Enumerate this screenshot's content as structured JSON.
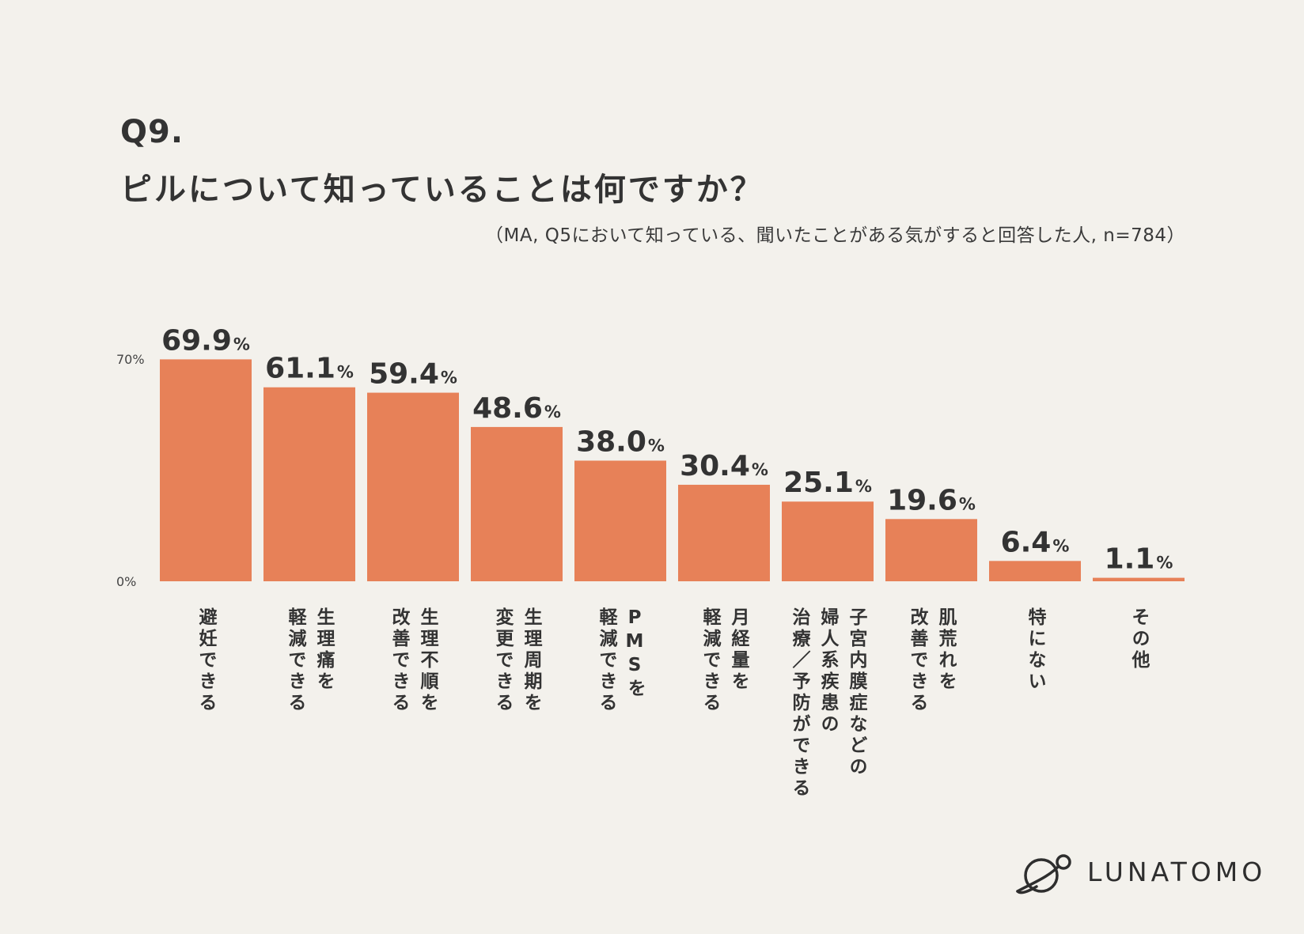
{
  "header": {
    "question_number": "Q9.",
    "question_text": "ピルについて知っていることは何ですか？",
    "note": "（MA, Q5において知っている、聞いたことがある気がすると回答した人, n=784）"
  },
  "chart_data": {
    "type": "bar",
    "title": "ピルについて知っていることは何ですか？",
    "unit": "%",
    "ylim": [
      0,
      70
    ],
    "yticks": [
      {
        "value": 0,
        "label": "0%"
      },
      {
        "value": 70,
        "label": "70%"
      }
    ],
    "grid": false,
    "categories": [
      [
        "避妊できる"
      ],
      [
        "生理痛を",
        "軽減できる"
      ],
      [
        "生理不順を",
        "改善できる"
      ],
      [
        "生理周期を",
        "変更できる"
      ],
      [
        "PMSを",
        "軽減できる"
      ],
      [
        "月経量を",
        "軽減できる"
      ],
      [
        "子宮内膜症などの",
        "婦人系疾患の",
        "治療／予防ができる"
      ],
      [
        "肌荒れを",
        "改善できる"
      ],
      [
        "特にない"
      ],
      [
        "その他"
      ]
    ],
    "values": [
      69.9,
      61.1,
      59.4,
      48.6,
      38.0,
      30.4,
      25.1,
      19.6,
      6.4,
      1.1
    ],
    "value_labels": [
      "69.9",
      "61.1",
      "59.4",
      "48.6",
      "38.0",
      "30.4",
      "25.1",
      "19.6",
      "6.4",
      "1.1"
    ],
    "bar_color": "#e78158"
  },
  "logo": {
    "text": "LUNATOMO",
    "icon": "planet-ring-icon"
  }
}
